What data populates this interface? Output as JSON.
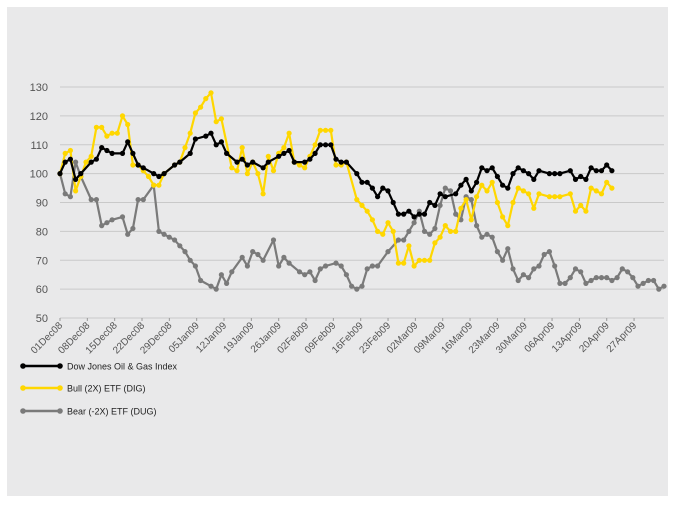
{
  "chart_data": {
    "type": "line",
    "title": "",
    "xlabel": "",
    "ylabel": "",
    "ylim": [
      50,
      130
    ],
    "yticks": [
      50,
      60,
      70,
      80,
      90,
      100,
      110,
      120,
      130
    ],
    "grid": true,
    "legend_position": "bottom-left",
    "x_tick_labels": [
      "01Dec08",
      "08Dec08",
      "15Dec08",
      "22Dec08",
      "29Dec08",
      "05Jan09",
      "12Jan09",
      "19Jan09",
      "26Jan09",
      "02Feb09",
      "09Feb09",
      "16Feb09",
      "23Feb09",
      "02Mar09",
      "09Mar09",
      "16Mar09",
      "23Mar09",
      "30Mar09",
      "06Apr09",
      "13Apr09",
      "20Apr09",
      "27Apr09"
    ],
    "series": [
      {
        "name": "Dow Jones Oil & Gas Index",
        "color": "#000000",
        "points": [
          [
            0,
            100
          ],
          [
            1,
            104
          ],
          [
            2,
            105
          ],
          [
            3,
            98
          ],
          [
            4,
            100
          ],
          [
            6,
            104
          ],
          [
            7,
            105
          ],
          [
            8,
            109
          ],
          [
            9,
            108
          ],
          [
            10,
            107
          ],
          [
            12,
            107
          ],
          [
            13,
            111
          ],
          [
            14,
            107
          ],
          [
            15,
            103
          ],
          [
            16,
            102
          ],
          [
            18,
            100
          ],
          [
            19,
            99
          ],
          [
            20,
            100
          ],
          [
            22,
            103
          ],
          [
            23,
            104
          ],
          [
            25,
            107
          ],
          [
            26,
            112
          ],
          [
            28,
            113
          ],
          [
            29,
            114
          ],
          [
            30,
            110
          ],
          [
            31,
            111
          ],
          [
            32,
            107
          ],
          [
            34,
            104
          ],
          [
            35,
            105
          ],
          [
            36,
            103
          ],
          [
            37,
            104
          ],
          [
            39,
            102
          ],
          [
            40,
            104
          ],
          [
            42,
            106
          ],
          [
            43,
            107
          ],
          [
            44,
            108
          ],
          [
            45,
            104
          ],
          [
            47,
            104
          ],
          [
            48,
            105
          ],
          [
            49,
            107
          ],
          [
            50,
            110
          ],
          [
            51,
            110
          ],
          [
            52,
            110
          ],
          [
            53,
            105
          ],
          [
            54,
            104
          ],
          [
            55,
            104
          ],
          [
            57,
            100
          ],
          [
            58,
            97
          ],
          [
            59,
            97
          ],
          [
            60,
            95
          ],
          [
            61,
            92
          ],
          [
            62,
            95
          ],
          [
            63,
            94
          ],
          [
            64,
            90
          ],
          [
            65,
            86
          ],
          [
            66,
            86
          ],
          [
            67,
            87
          ],
          [
            68,
            85
          ],
          [
            69,
            86
          ],
          [
            70,
            86
          ],
          [
            71,
            90
          ],
          [
            72,
            89
          ],
          [
            73,
            93
          ],
          [
            74,
            92
          ],
          [
            76,
            93
          ],
          [
            77,
            96
          ],
          [
            78,
            98
          ],
          [
            79,
            94
          ],
          [
            80,
            97
          ],
          [
            81,
            102
          ],
          [
            82,
            101
          ],
          [
            83,
            102
          ],
          [
            84,
            99
          ],
          [
            85,
            96
          ],
          [
            86,
            95
          ],
          [
            87,
            100
          ],
          [
            88,
            102
          ],
          [
            89,
            101
          ],
          [
            90,
            100
          ],
          [
            91,
            98
          ],
          [
            92,
            101
          ],
          [
            94,
            100
          ],
          [
            95,
            100
          ],
          [
            96,
            100
          ],
          [
            98,
            101
          ],
          [
            99,
            98
          ],
          [
            100,
            99
          ],
          [
            101,
            98
          ],
          [
            102,
            102
          ],
          [
            103,
            101
          ],
          [
            104,
            101
          ],
          [
            105,
            103
          ],
          [
            106,
            101
          ]
        ]
      },
      {
        "name": "Bull (2X) ETF (DIG)",
        "color": "#ffd700",
        "points": [
          [
            0,
            100
          ],
          [
            1,
            107
          ],
          [
            2,
            108
          ],
          [
            3,
            94
          ],
          [
            4,
            99
          ],
          [
            5,
            104
          ],
          [
            6,
            106
          ],
          [
            7,
            116
          ],
          [
            8,
            116
          ],
          [
            9,
            113
          ],
          [
            10,
            114
          ],
          [
            11,
            114
          ],
          [
            12,
            120
          ],
          [
            13,
            117
          ],
          [
            14,
            103
          ],
          [
            15,
            103
          ],
          [
            16,
            101
          ],
          [
            17,
            99
          ],
          [
            18,
            96
          ],
          [
            19,
            96
          ],
          [
            20,
            100
          ],
          [
            22,
            103
          ],
          [
            23,
            104
          ],
          [
            24,
            109
          ],
          [
            25,
            114
          ],
          [
            26,
            121
          ],
          [
            27,
            123
          ],
          [
            28,
            126
          ],
          [
            29,
            128
          ],
          [
            30,
            118
          ],
          [
            31,
            119
          ],
          [
            33,
            102
          ],
          [
            34,
            101
          ],
          [
            35,
            109
          ],
          [
            36,
            100
          ],
          [
            37,
            104
          ],
          [
            38,
            100
          ],
          [
            39,
            93
          ],
          [
            40,
            106
          ],
          [
            41,
            101
          ],
          [
            42,
            107
          ],
          [
            43,
            109
          ],
          [
            44,
            114
          ],
          [
            45,
            104
          ],
          [
            46,
            103
          ],
          [
            47,
            102
          ],
          [
            48,
            106
          ],
          [
            49,
            110
          ],
          [
            50,
            115
          ],
          [
            51,
            115
          ],
          [
            52,
            115
          ],
          [
            53,
            103
          ],
          [
            54,
            103
          ],
          [
            55,
            104
          ],
          [
            57,
            91
          ],
          [
            58,
            89
          ],
          [
            59,
            87
          ],
          [
            60,
            84
          ],
          [
            61,
            80
          ],
          [
            62,
            79
          ],
          [
            63,
            83
          ],
          [
            64,
            80
          ],
          [
            65,
            69
          ],
          [
            66,
            69
          ],
          [
            67,
            75
          ],
          [
            68,
            68
          ],
          [
            69,
            70
          ],
          [
            70,
            70
          ],
          [
            71,
            70
          ],
          [
            72,
            76
          ],
          [
            73,
            78
          ],
          [
            74,
            82
          ],
          [
            75,
            80
          ],
          [
            76,
            80
          ],
          [
            77,
            88
          ],
          [
            78,
            91
          ],
          [
            79,
            84
          ],
          [
            80,
            92
          ],
          [
            81,
            96
          ],
          [
            82,
            94
          ],
          [
            83,
            97
          ],
          [
            84,
            90
          ],
          [
            85,
            85
          ],
          [
            86,
            82
          ],
          [
            87,
            90
          ],
          [
            88,
            95
          ],
          [
            89,
            94
          ],
          [
            90,
            93
          ],
          [
            91,
            88
          ],
          [
            92,
            93
          ],
          [
            94,
            92
          ],
          [
            95,
            92
          ],
          [
            96,
            92
          ],
          [
            98,
            93
          ],
          [
            99,
            87
          ],
          [
            100,
            89
          ],
          [
            101,
            87
          ],
          [
            102,
            95
          ],
          [
            103,
            94
          ],
          [
            104,
            93
          ],
          [
            105,
            97
          ],
          [
            106,
            95
          ]
        ]
      },
      {
        "name": "Bear (-2X) ETF (DUG)",
        "color": "#7a7a7a",
        "points": [
          [
            0,
            100
          ],
          [
            1,
            93
          ],
          [
            2,
            92
          ],
          [
            3,
            104
          ],
          [
            4,
            99
          ],
          [
            6,
            91
          ],
          [
            7,
            91
          ],
          [
            8,
            82
          ],
          [
            9,
            83
          ],
          [
            10,
            84
          ],
          [
            12,
            85
          ],
          [
            13,
            79
          ],
          [
            14,
            81
          ],
          [
            15,
            91
          ],
          [
            16,
            91
          ],
          [
            18,
            96
          ],
          [
            19,
            80
          ],
          [
            20,
            79
          ],
          [
            21,
            78
          ],
          [
            22,
            77
          ],
          [
            23,
            75
          ],
          [
            24,
            73
          ],
          [
            25,
            70
          ],
          [
            26,
            68
          ],
          [
            27,
            63
          ],
          [
            29,
            61
          ],
          [
            30,
            60
          ],
          [
            31,
            65
          ],
          [
            32,
            62
          ],
          [
            33,
            66
          ],
          [
            35,
            71
          ],
          [
            36,
            68
          ],
          [
            37,
            73
          ],
          [
            38,
            72
          ],
          [
            39,
            70
          ],
          [
            41,
            77
          ],
          [
            42,
            68
          ],
          [
            43,
            71
          ],
          [
            44,
            69
          ],
          [
            46,
            66
          ],
          [
            47,
            65
          ],
          [
            48,
            66
          ],
          [
            49,
            63
          ],
          [
            50,
            67
          ],
          [
            51,
            68
          ],
          [
            53,
            69
          ],
          [
            54,
            68
          ],
          [
            55,
            65
          ],
          [
            56,
            61
          ],
          [
            57,
            60
          ],
          [
            58,
            61
          ],
          [
            59,
            67
          ],
          [
            60,
            68
          ],
          [
            61,
            68
          ],
          [
            63,
            73
          ],
          [
            65,
            77
          ],
          [
            66,
            77
          ],
          [
            67,
            80
          ],
          [
            68,
            83
          ],
          [
            69,
            87
          ],
          [
            70,
            80
          ],
          [
            71,
            79
          ],
          [
            72,
            81
          ],
          [
            73,
            89
          ],
          [
            74,
            95
          ],
          [
            75,
            94
          ],
          [
            76,
            86
          ],
          [
            77,
            84
          ],
          [
            78,
            92
          ],
          [
            79,
            91
          ],
          [
            80,
            82
          ],
          [
            81,
            78
          ],
          [
            82,
            79
          ],
          [
            83,
            78
          ],
          [
            84,
            73
          ],
          [
            85,
            70
          ],
          [
            86,
            74
          ],
          [
            87,
            67
          ],
          [
            88,
            63
          ],
          [
            89,
            65
          ],
          [
            90,
            64
          ],
          [
            91,
            67
          ],
          [
            92,
            68
          ],
          [
            93,
            72
          ],
          [
            94,
            73
          ],
          [
            95,
            68
          ],
          [
            96,
            62
          ],
          [
            97,
            62
          ],
          [
            98,
            64
          ],
          [
            99,
            67
          ],
          [
            100,
            66
          ],
          [
            101,
            62
          ],
          [
            102,
            63
          ],
          [
            103,
            64
          ],
          [
            104,
            64
          ],
          [
            105,
            64
          ],
          [
            106,
            63
          ],
          [
            107,
            64
          ],
          [
            108,
            67
          ],
          [
            109,
            66
          ],
          [
            110,
            64
          ],
          [
            111,
            61
          ],
          [
            112,
            62
          ],
          [
            113,
            63
          ],
          [
            114,
            63
          ],
          [
            115,
            60
          ],
          [
            116,
            61
          ]
        ]
      }
    ]
  }
}
